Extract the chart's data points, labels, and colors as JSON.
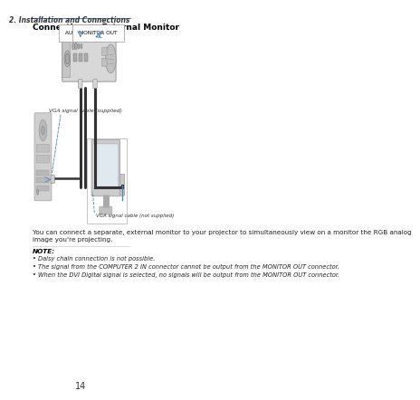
{
  "page_num": "14",
  "section_title": "2. Installation and Connections",
  "subsection_title": "Connecting an External Monitor",
  "body_text1": "You can connect a separate, external monitor to your projector to simultaneously view on a monitor the RGB analog",
  "body_text2": "image you're projecting.",
  "note_title": "NOTE:",
  "note_bullets": [
    "Daisy chain connection is not possible.",
    "The signal from the COMPUTER 2 IN connector cannot be output from the MONITOR OUT connector.",
    "When the DVI Digital signal is selected, no signals will be output from the MONITOR OUT connector."
  ],
  "label_audio_out": "AUDIO OUT",
  "label_monitor_out": "MONITOR OUT",
  "label_vga_supplied": "VGA signal cable (supplied)",
  "label_vga_not_supplied": "VGA signal cable (not supplied)",
  "bg_color": "#ffffff",
  "blue_accent": "#4a86c8",
  "dark_blue_rule": "#5588bb",
  "proj_body": "#d8d8d8",
  "proj_border": "#999999",
  "proj_dark": "#b0b0b0",
  "comp_body": "#d0d0d0",
  "comp_border": "#aaaaaa",
  "mon_body": "#cccccc",
  "mon_border": "#aaaaaa",
  "cable_black": "#333333",
  "cable_blue": "#3a7abf",
  "connector_color": "#c8c8c8",
  "connector_border": "#888888",
  "label_box_bg": "#ffffff",
  "label_box_border": "#999999",
  "note_rule": "#cccccc",
  "text_color": "#222222"
}
